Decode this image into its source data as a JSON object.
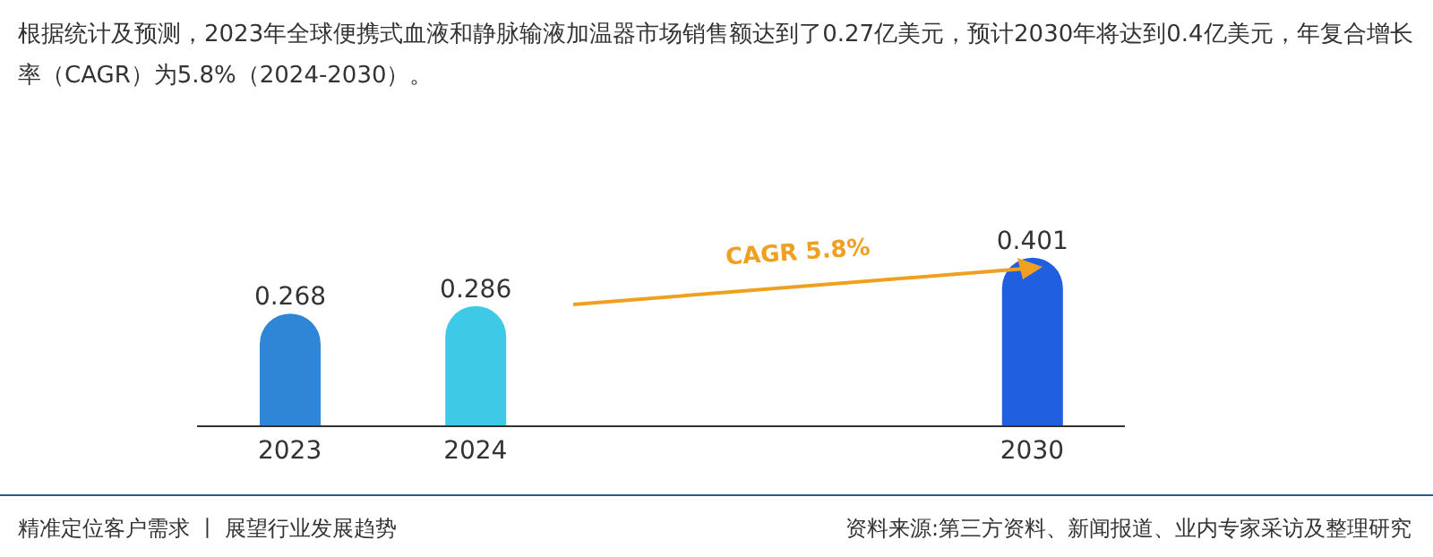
{
  "chart_data": {
    "type": "bar",
    "title": "根据统计及预测，2023年全球便携式血液和静脉输液加温器市场销售额达到了0.27亿美元，预计2030年将达到0.4亿美元，年复合增长率（CAGR）为5.8%（2024-2030）。",
    "categories": [
      "2023",
      "2024",
      null,
      null,
      "2030"
    ],
    "values": [
      0.268,
      0.286,
      null,
      null,
      0.401
    ],
    "colors": [
      "#2f86d6",
      "#3ec9e6",
      "#ffffff",
      "#ffffff",
      "#1f5fe0"
    ],
    "data_labels": true,
    "annotations": [
      "CAGR 5.8%",
      "精准定位客户需求 丨 展望行业发展趋势",
      "资料来源:第三方资料、新闻报道、业内专家采访及整理研究"
    ]
  }
}
